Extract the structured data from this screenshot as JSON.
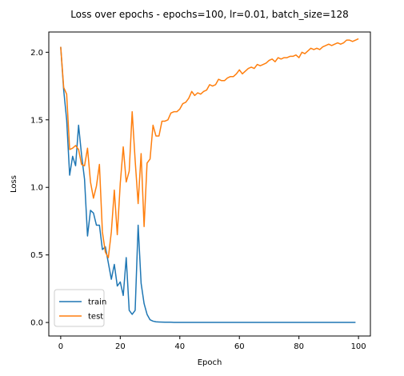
{
  "chart_data": {
    "type": "line",
    "title": "Loss over epochs - epochs=100, lr=0.01, batch_size=128",
    "xlabel": "Epoch",
    "ylabel": "Loss",
    "xlim": [
      -4,
      104
    ],
    "ylim": [
      -0.1,
      2.15
    ],
    "xticks": [
      0,
      20,
      40,
      60,
      80,
      100
    ],
    "yticks": [
      0.0,
      0.5,
      1.0,
      1.5,
      2.0
    ],
    "grid": false,
    "legend_position": "lower-left",
    "series": [
      {
        "name": "train",
        "color": "#1f77b4",
        "values": [
          2.04,
          1.72,
          1.5,
          1.09,
          1.23,
          1.16,
          1.46,
          1.24,
          1.06,
          0.64,
          0.83,
          0.81,
          0.72,
          0.72,
          0.54,
          0.56,
          0.44,
          0.32,
          0.43,
          0.27,
          0.3,
          0.2,
          0.48,
          0.09,
          0.06,
          0.09,
          0.72,
          0.29,
          0.14,
          0.06,
          0.02,
          0.01,
          0.005,
          0.004,
          0.003,
          0.002,
          0.002,
          0.002,
          0.001,
          0.001,
          0.001,
          0.001,
          0.001,
          0.001,
          0.001,
          0.001,
          0.001,
          0.001,
          0.001,
          0.001,
          0.001,
          0.001,
          0.001,
          0.001,
          0.001,
          0.001,
          0.001,
          0.001,
          0.001,
          0.001,
          0.001,
          0.001,
          0.001,
          0.001,
          0.001,
          0.001,
          0.001,
          0.001,
          0.001,
          0.001,
          0.001,
          0.001,
          0.001,
          0.001,
          0.001,
          0.001,
          0.001,
          0.001,
          0.001,
          0.001,
          0.001,
          0.001,
          0.001,
          0.001,
          0.001,
          0.001,
          0.001,
          0.001,
          0.001,
          0.001,
          0.001,
          0.001,
          0.001,
          0.001,
          0.001,
          0.001,
          0.001,
          0.001,
          0.001,
          0.001
        ]
      },
      {
        "name": "test",
        "color": "#ff7f0e",
        "values": [
          2.04,
          1.74,
          1.69,
          1.28,
          1.29,
          1.31,
          1.28,
          1.17,
          1.16,
          1.29,
          1.04,
          0.92,
          1.01,
          1.17,
          0.67,
          0.52,
          0.48,
          0.67,
          0.98,
          0.65,
          1.03,
          1.3,
          1.04,
          1.12,
          1.56,
          1.2,
          0.88,
          1.25,
          0.71,
          1.18,
          1.21,
          1.46,
          1.38,
          1.38,
          1.49,
          1.49,
          1.5,
          1.55,
          1.56,
          1.56,
          1.58,
          1.62,
          1.63,
          1.66,
          1.71,
          1.68,
          1.7,
          1.69,
          1.71,
          1.72,
          1.76,
          1.75,
          1.76,
          1.8,
          1.79,
          1.79,
          1.81,
          1.82,
          1.82,
          1.84,
          1.87,
          1.84,
          1.86,
          1.88,
          1.89,
          1.88,
          1.91,
          1.9,
          1.91,
          1.92,
          1.94,
          1.95,
          1.93,
          1.96,
          1.95,
          1.96,
          1.96,
          1.97,
          1.97,
          1.98,
          1.96,
          2.0,
          1.99,
          2.01,
          2.03,
          2.02,
          2.03,
          2.02,
          2.04,
          2.05,
          2.06,
          2.05,
          2.06,
          2.07,
          2.06,
          2.07,
          2.09,
          2.09,
          2.08,
          2.09,
          2.1
        ]
      }
    ]
  }
}
